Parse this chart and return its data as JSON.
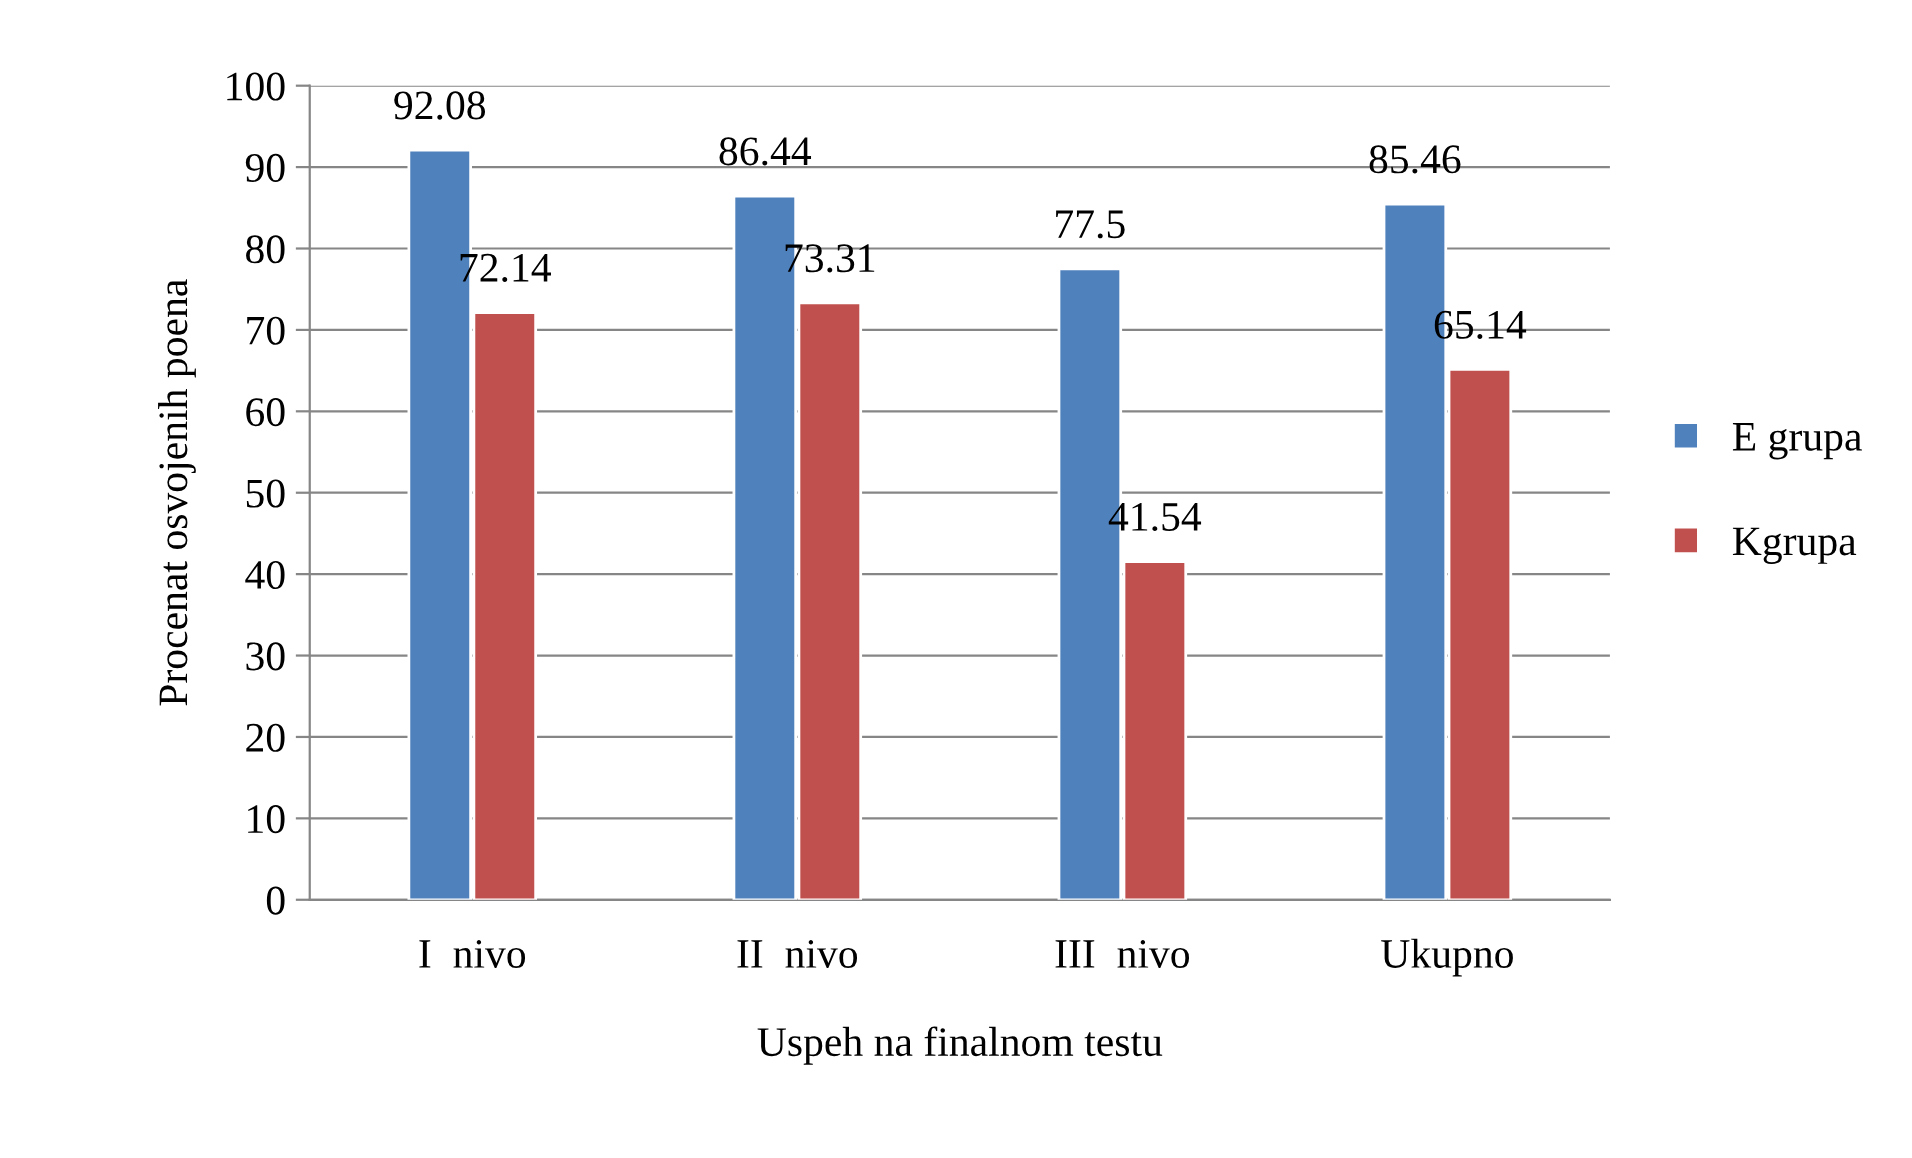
{
  "chart_data": {
    "type": "bar",
    "xlabel": "Uspeh na finalnom testu",
    "ylabel": "Procenat osvojenih poena",
    "categories": [
      "I  nivo",
      "II  nivo",
      "III  nivo",
      "Ukupno"
    ],
    "series": [
      {
        "name": "E grupa",
        "color": "#4f81bd",
        "values": [
          92.08,
          86.44,
          77.5,
          85.46
        ]
      },
      {
        "name": "Kgrupa",
        "color": "#c0504d",
        "values": [
          72.14,
          73.31,
          41.54,
          65.14
        ]
      }
    ],
    "ylim": [
      0,
      100
    ],
    "yticks": [
      0,
      10,
      20,
      30,
      40,
      50,
      60,
      70,
      80,
      90,
      100
    ],
    "grid": "y",
    "legend": "right",
    "data_labels": true
  }
}
